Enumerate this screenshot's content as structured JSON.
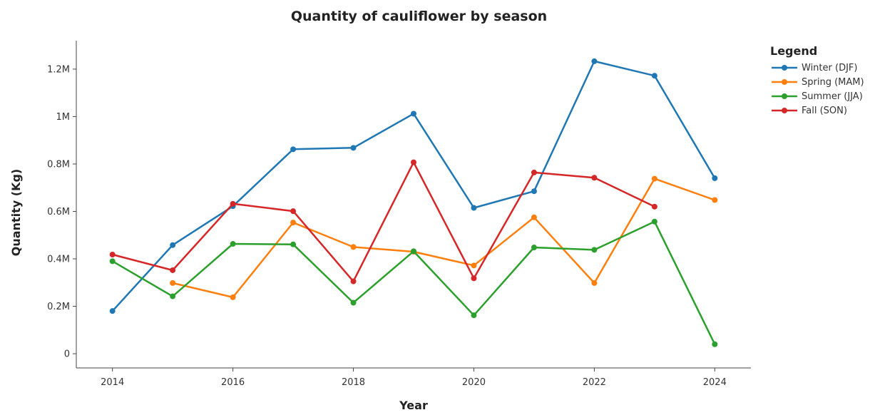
{
  "chart_data": {
    "type": "line",
    "title": "Quantity of cauliflower by season",
    "xlabel": "Year",
    "ylabel": "Quantity (Kg)",
    "xlim": [
      2013.4,
      2024.6
    ],
    "ylim": [
      -60000,
      1320000
    ],
    "x_ticks": [
      2014,
      2016,
      2018,
      2020,
      2022,
      2024
    ],
    "x_tick_labels": [
      "2014",
      "2016",
      "2018",
      "2020",
      "2022",
      "2024"
    ],
    "y_ticks": [
      0,
      200000,
      400000,
      600000,
      800000,
      1000000,
      1200000
    ],
    "y_tick_labels": [
      "0",
      "0.2M",
      "0.4M",
      "0.6M",
      "0.8M",
      "1M",
      "1.2M"
    ],
    "grid": false,
    "legend_title": "Legend",
    "legend_position": "top-right",
    "series": [
      {
        "name": "Winter (DJF)",
        "color": "#1f77b4",
        "x": [
          2014,
          2015,
          2016,
          2017,
          2018,
          2019,
          2020,
          2021,
          2022,
          2023,
          2024
        ],
        "values": [
          180000,
          458000,
          622000,
          862000,
          868000,
          1012000,
          615000,
          685000,
          1233000,
          1172000,
          740000
        ]
      },
      {
        "name": "Spring (MAM)",
        "color": "#ff7f0e",
        "x": [
          2015,
          2016,
          2017,
          2018,
          2019,
          2020,
          2021,
          2022,
          2023,
          2024
        ],
        "values": [
          298000,
          238000,
          553000,
          450000,
          430000,
          372000,
          575000,
          298000,
          738000,
          648000
        ]
      },
      {
        "name": "Summer (JJA)",
        "color": "#2ca02c",
        "x": [
          2014,
          2015,
          2016,
          2017,
          2018,
          2019,
          2020,
          2021,
          2022,
          2023,
          2024
        ],
        "values": [
          390000,
          242000,
          463000,
          461000,
          215000,
          432000,
          162000,
          448000,
          438000,
          557000,
          40000
        ]
      },
      {
        "name": "Fall (SON)",
        "color": "#d62728",
        "x": [
          2014,
          2015,
          2016,
          2017,
          2018,
          2019,
          2020,
          2021,
          2022,
          2023
        ],
        "values": [
          418000,
          352000,
          632000,
          601000,
          305000,
          807000,
          318000,
          764000,
          742000,
          620000
        ]
      }
    ]
  }
}
